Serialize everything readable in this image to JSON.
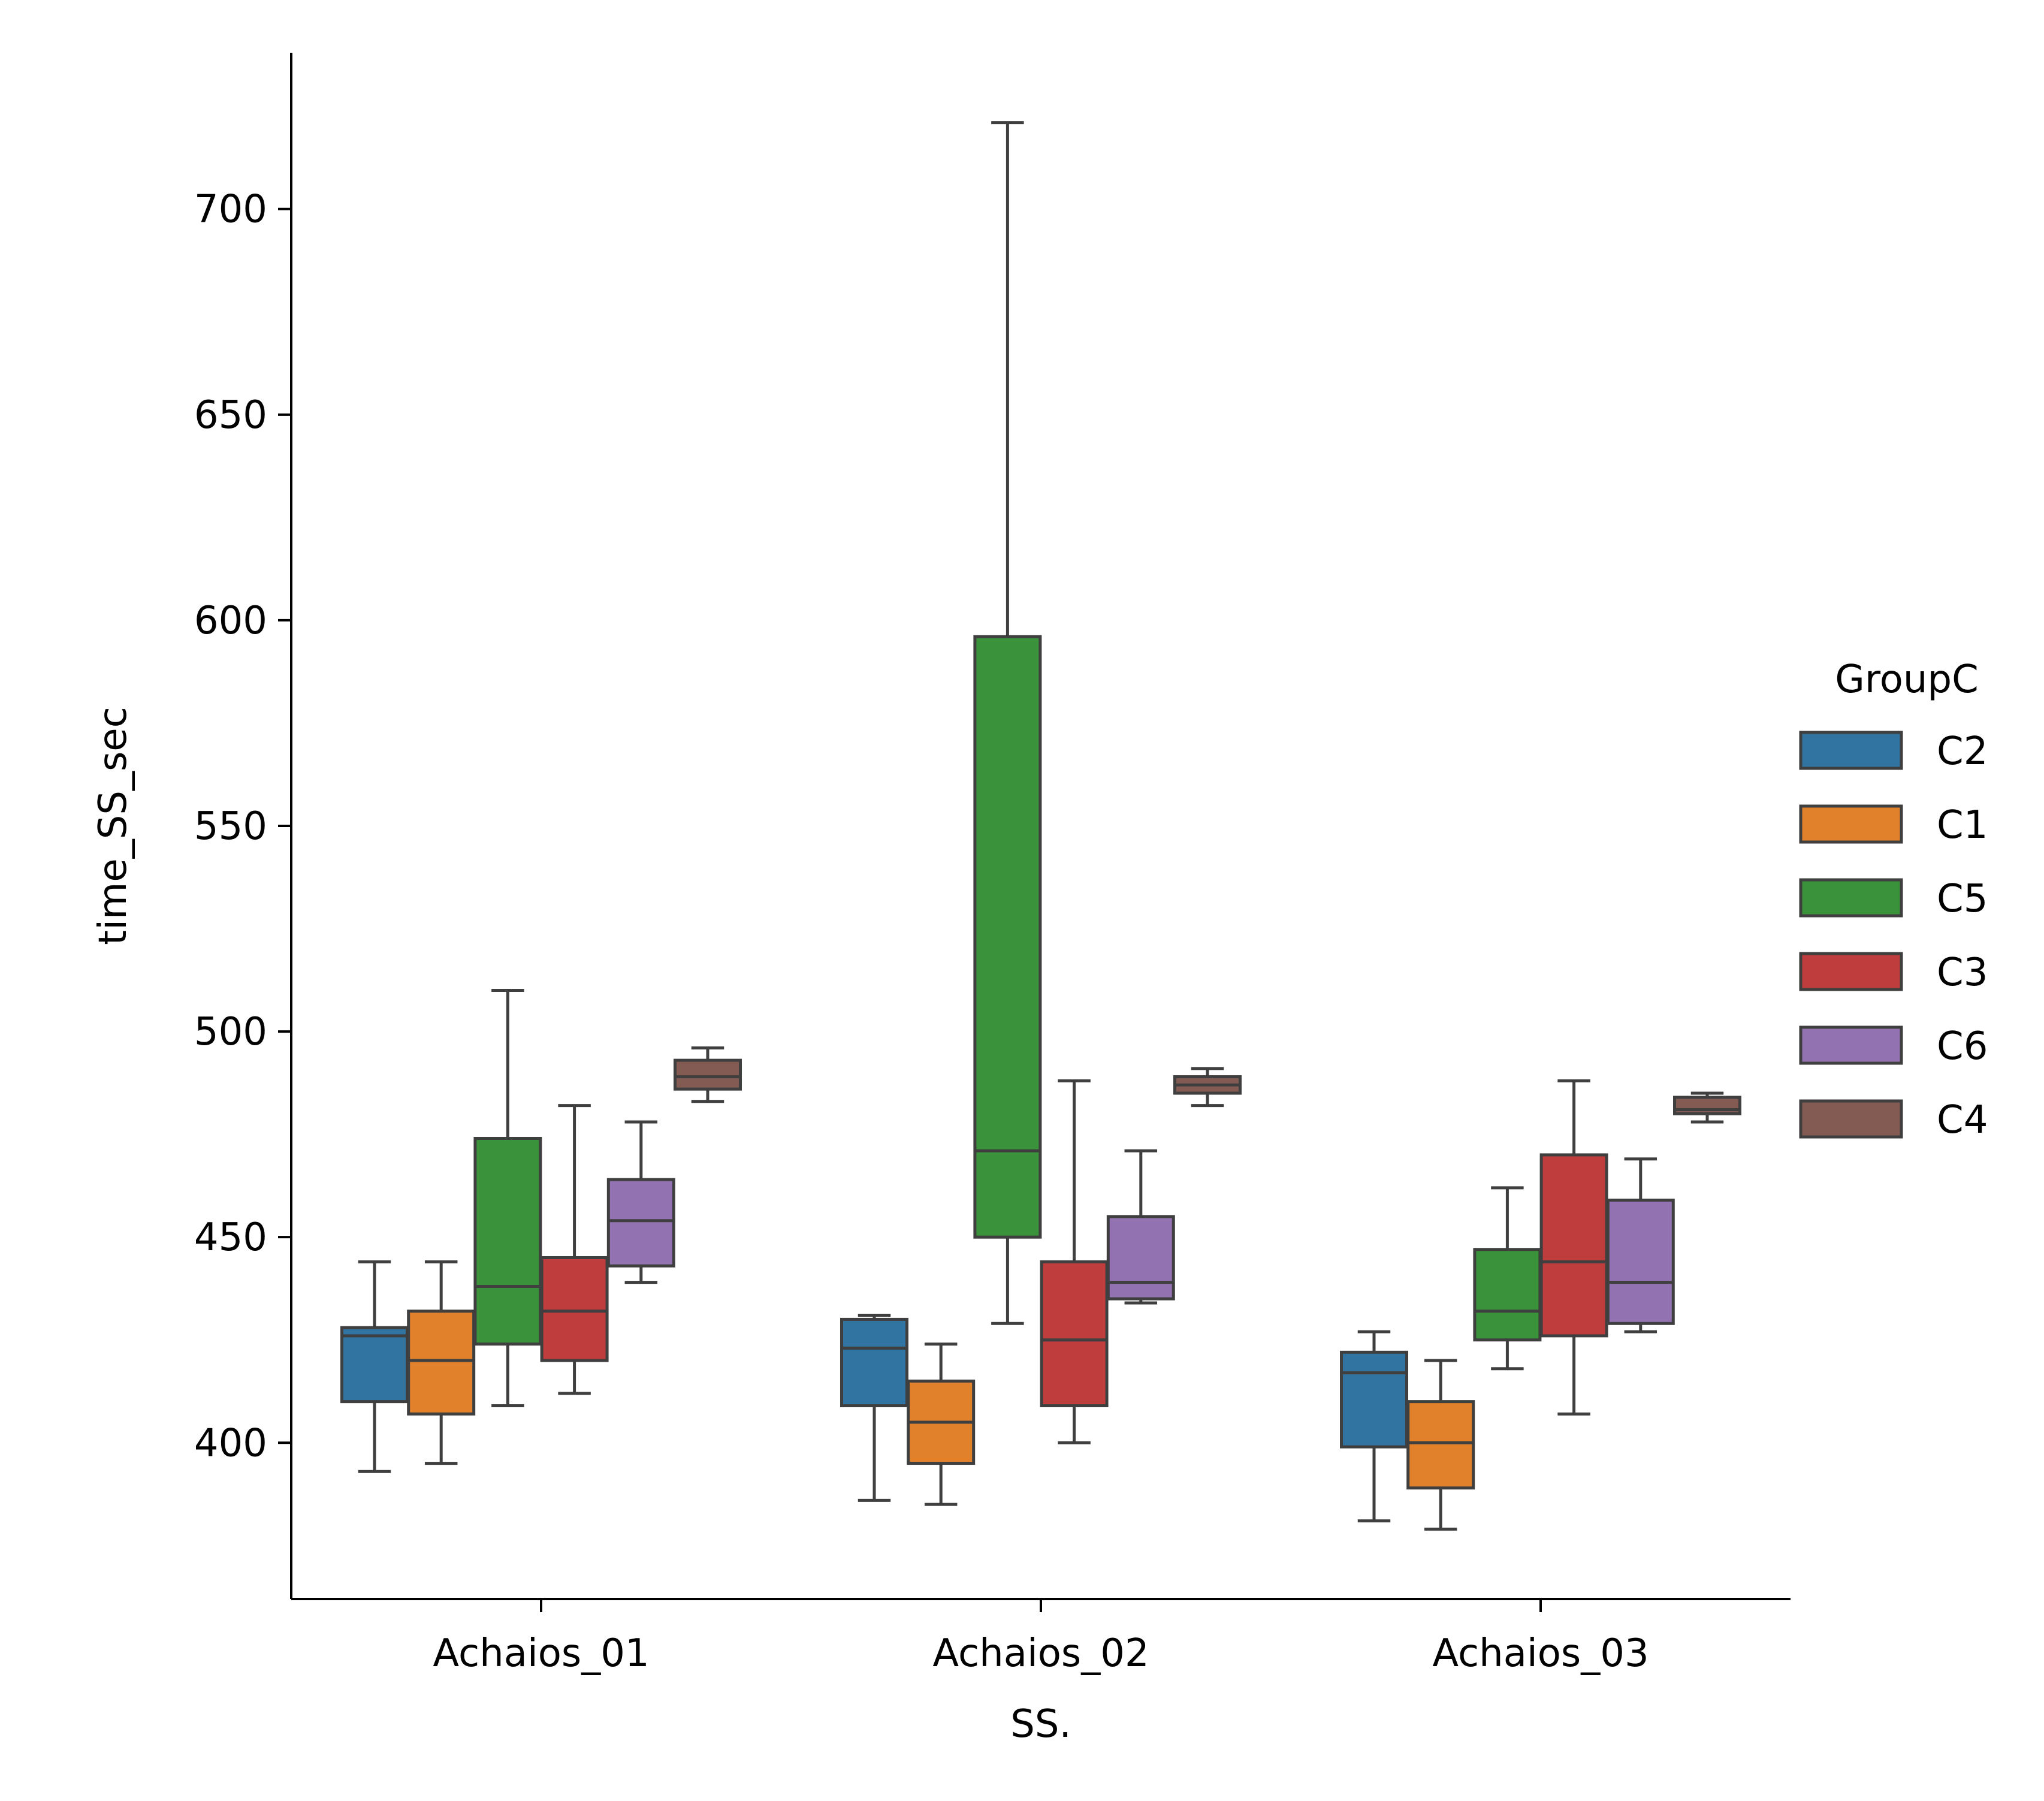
{
  "chart_data": {
    "type": "box",
    "xlabel": "SS.",
    "ylabel": "time_SS_sec",
    "categories": [
      "Achaios_01",
      "Achaios_02",
      "Achaios_03"
    ],
    "yticks": [
      400,
      450,
      500,
      550,
      600,
      650,
      700
    ],
    "ylim": [
      362,
      738
    ],
    "legend": {
      "title": "GroupC",
      "placement": "center-right",
      "entries": [
        "C2",
        "C1",
        "C5",
        "C3",
        "C6",
        "C4"
      ]
    },
    "series": [
      {
        "name": "C2",
        "color": "#3274a1",
        "boxes": [
          {
            "whislo": 393,
            "q1": 410,
            "med": 426,
            "q3": 428,
            "whishi": 444
          },
          {
            "whislo": 386,
            "q1": 409,
            "med": 423,
            "q3": 430,
            "whishi": 431
          },
          {
            "whislo": 381,
            "q1": 399,
            "med": 417,
            "q3": 422,
            "whishi": 427
          }
        ]
      },
      {
        "name": "C1",
        "color": "#e1812c",
        "boxes": [
          {
            "whislo": 395,
            "q1": 407,
            "med": 420,
            "q3": 432,
            "whishi": 444
          },
          {
            "whislo": 385,
            "q1": 395,
            "med": 405,
            "q3": 415,
            "whishi": 424
          },
          {
            "whislo": 379,
            "q1": 389,
            "med": 400,
            "q3": 410,
            "whishi": 420
          }
        ]
      },
      {
        "name": "C5",
        "color": "#3a923a",
        "boxes": [
          {
            "whislo": 409,
            "q1": 424,
            "med": 438,
            "q3": 474,
            "whishi": 510
          },
          {
            "whislo": 429,
            "q1": 450,
            "med": 471,
            "q3": 596,
            "whishi": 721
          },
          {
            "whislo": 418,
            "q1": 425,
            "med": 432,
            "q3": 447,
            "whishi": 462
          }
        ]
      },
      {
        "name": "C3",
        "color": "#c03d3e",
        "boxes": [
          {
            "whislo": 412,
            "q1": 420,
            "med": 432,
            "q3": 445,
            "whishi": 482
          },
          {
            "whislo": 400,
            "q1": 409,
            "med": 425,
            "q3": 444,
            "whishi": 488
          },
          {
            "whislo": 407,
            "q1": 426,
            "med": 444,
            "q3": 470,
            "whishi": 488
          }
        ]
      },
      {
        "name": "C6",
        "color": "#9372b2",
        "boxes": [
          {
            "whislo": 439,
            "q1": 443,
            "med": 454,
            "q3": 464,
            "whishi": 478
          },
          {
            "whislo": 434,
            "q1": 435,
            "med": 439,
            "q3": 455,
            "whishi": 471
          },
          {
            "whislo": 427,
            "q1": 429,
            "med": 439,
            "q3": 459,
            "whishi": 469
          }
        ]
      },
      {
        "name": "C4",
        "color": "#845b53",
        "boxes": [
          {
            "whislo": 483,
            "q1": 486,
            "med": 489,
            "q3": 493,
            "whishi": 496
          },
          {
            "whislo": 482,
            "q1": 485,
            "med": 487,
            "q3": 489,
            "whishi": 491
          },
          {
            "whislo": 478,
            "q1": 480,
            "med": 481,
            "q3": 484,
            "whishi": 485
          }
        ]
      }
    ]
  }
}
